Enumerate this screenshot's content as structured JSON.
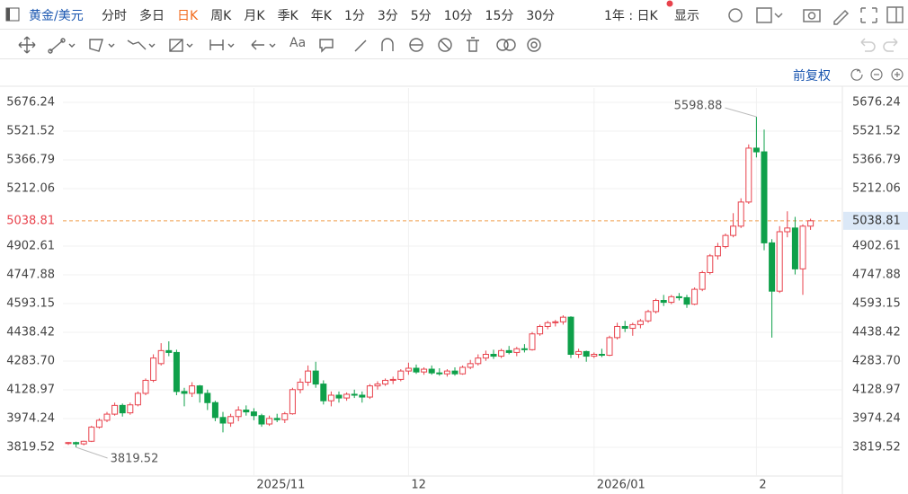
{
  "ui": {
    "symbol": "黄金/美元",
    "periods": [
      "分时",
      "多日",
      "日K",
      "周K",
      "月K",
      "季K",
      "年K",
      "1分",
      "3分",
      "5分",
      "10分",
      "15分",
      "30分"
    ],
    "selected_period": "日K",
    "range": "1年 : 日K",
    "display": "显示",
    "text_tool": "Aa",
    "adjust": "前复权"
  },
  "chart_data": {
    "type": "candlestick",
    "categories": [
      null,
      null,
      null,
      null,
      null,
      null,
      null,
      null,
      null,
      null,
      null,
      null,
      null,
      null,
      null,
      null,
      null,
      null,
      null,
      null,
      null,
      null,
      null,
      null,
      "2025/11",
      null,
      null,
      null,
      null,
      null,
      null,
      null,
      null,
      null,
      null,
      null,
      null,
      null,
      null,
      null,
      null,
      null,
      null,
      null,
      "12",
      null,
      null,
      null,
      null,
      null,
      null,
      null,
      null,
      null,
      null,
      null,
      null,
      null,
      null,
      null,
      null,
      null,
      null,
      null,
      null,
      null,
      null,
      null,
      "2026/01",
      null,
      null,
      null,
      null,
      null,
      null,
      null,
      null,
      null,
      null,
      null,
      null,
      null,
      null,
      null,
      null,
      null,
      null,
      null,
      null,
      "2",
      null,
      null,
      null,
      null,
      null,
      null,
      null
    ],
    "open": [
      3840,
      3845,
      3838,
      3852,
      3928,
      3965,
      3998,
      4045,
      4005,
      4048,
      4110,
      4180,
      4270,
      4340,
      4330,
      4120,
      4110,
      4150,
      4110,
      4060,
      3980,
      3950,
      3985,
      4020,
      4010,
      3990,
      3945,
      3975,
      3968,
      4000,
      4130,
      4170,
      4230,
      4160,
      4070,
      4100,
      4085,
      4105,
      4100,
      4090,
      4150,
      4160,
      4180,
      4185,
      4230,
      4245,
      4225,
      4240,
      4220,
      4215,
      4230,
      4215,
      4250,
      4270,
      4300,
      4320,
      4310,
      4340,
      4330,
      4350,
      4345,
      4430,
      4470,
      4490,
      4495,
      4520,
      4320,
      4335,
      4310,
      4320,
      4315,
      4410,
      4470,
      4460,
      4480,
      4500,
      4550,
      4610,
      4600,
      4630,
      4625,
      4590,
      4670,
      4760,
      4850,
      4900,
      4960,
      5010,
      5140,
      5430,
      5410,
      4920,
      4660,
      4980,
      5000,
      4780,
      5010
    ],
    "high": [
      3848,
      3850,
      3855,
      3935,
      3975,
      4010,
      4060,
      4055,
      4060,
      4120,
      4190,
      4320,
      4380,
      4390,
      4345,
      4140,
      4170,
      4155,
      4130,
      4070,
      4010,
      4000,
      4040,
      4045,
      4030,
      4000,
      3990,
      4000,
      4010,
      4140,
      4190,
      4260,
      4280,
      4180,
      4120,
      4120,
      4115,
      4130,
      4120,
      4160,
      4175,
      4190,
      4200,
      4240,
      4275,
      4265,
      4250,
      4260,
      4245,
      4240,
      4250,
      4260,
      4290,
      4320,
      4340,
      4345,
      4350,
      4365,
      4360,
      4375,
      4440,
      4480,
      4500,
      4505,
      4530,
      4525,
      4350,
      4340,
      4330,
      4350,
      4420,
      4490,
      4500,
      4490,
      4510,
      4560,
      4620,
      4640,
      4640,
      4650,
      4640,
      4680,
      4770,
      4860,
      4920,
      4970,
      5080,
      5160,
      5450,
      5598.88,
      5530,
      4940,
      5010,
      5090,
      5060,
      5020,
      5050
    ],
    "low": [
      3832,
      3819.52,
      3830,
      3848,
      3920,
      3955,
      3990,
      3985,
      3995,
      4040,
      4100,
      4170,
      4260,
      4310,
      4100,
      4040,
      4090,
      4060,
      4020,
      3960,
      3900,
      3930,
      3960,
      3990,
      3965,
      3930,
      3935,
      3955,
      3950,
      3995,
      4110,
      4150,
      4140,
      4050,
      4040,
      4060,
      4070,
      4085,
      4060,
      4080,
      4130,
      4150,
      4160,
      4175,
      4210,
      4215,
      4210,
      4210,
      4205,
      4200,
      4205,
      4210,
      4240,
      4260,
      4285,
      4295,
      4300,
      4320,
      4310,
      4330,
      4340,
      4420,
      4455,
      4470,
      4480,
      4300,
      4300,
      4280,
      4300,
      4305,
      4310,
      4400,
      4440,
      4420,
      4460,
      4490,
      4540,
      4580,
      4590,
      4610,
      4570,
      4585,
      4660,
      4750,
      4830,
      4890,
      4950,
      5000,
      5130,
      5380,
      4880,
      4410,
      4650,
      4950,
      4750,
      4640,
      4990
    ],
    "close": [
      3845,
      3838,
      3852,
      3928,
      3965,
      3998,
      4045,
      4005,
      4048,
      4110,
      4180,
      4300,
      4340,
      4330,
      4120,
      4110,
      4150,
      4110,
      4060,
      3980,
      3950,
      3985,
      4020,
      4010,
      3990,
      3945,
      3975,
      3968,
      4000,
      4130,
      4170,
      4230,
      4160,
      4070,
      4100,
      4085,
      4105,
      4100,
      4090,
      4150,
      4160,
      4180,
      4185,
      4230,
      4245,
      4225,
      4240,
      4220,
      4215,
      4230,
      4215,
      4250,
      4270,
      4300,
      4320,
      4310,
      4340,
      4330,
      4350,
      4345,
      4430,
      4470,
      4490,
      4495,
      4520,
      4320,
      4335,
      4310,
      4320,
      4315,
      4410,
      4470,
      4460,
      4480,
      4500,
      4550,
      4610,
      4600,
      4630,
      4625,
      4590,
      4670,
      4760,
      4850,
      4900,
      4960,
      5010,
      5140,
      5430,
      5410,
      4920,
      4660,
      4980,
      5000,
      4780,
      5010,
      5038.81
    ],
    "up_color": "#e8424c",
    "down_color": "#0ea04a",
    "price_line_color": "#f0a050",
    "ylim": [
      3664.8,
      5753.6
    ],
    "yticks": [
      3819.52,
      3974.24,
      4128.97,
      {
        "value": 4283.7,
        "label": "4283.70"
      },
      4438.42,
      4593.15,
      4747.88,
      4902.61,
      5212.06,
      5366.79,
      5521.52,
      5676.24
    ],
    "grid": true
  }
}
